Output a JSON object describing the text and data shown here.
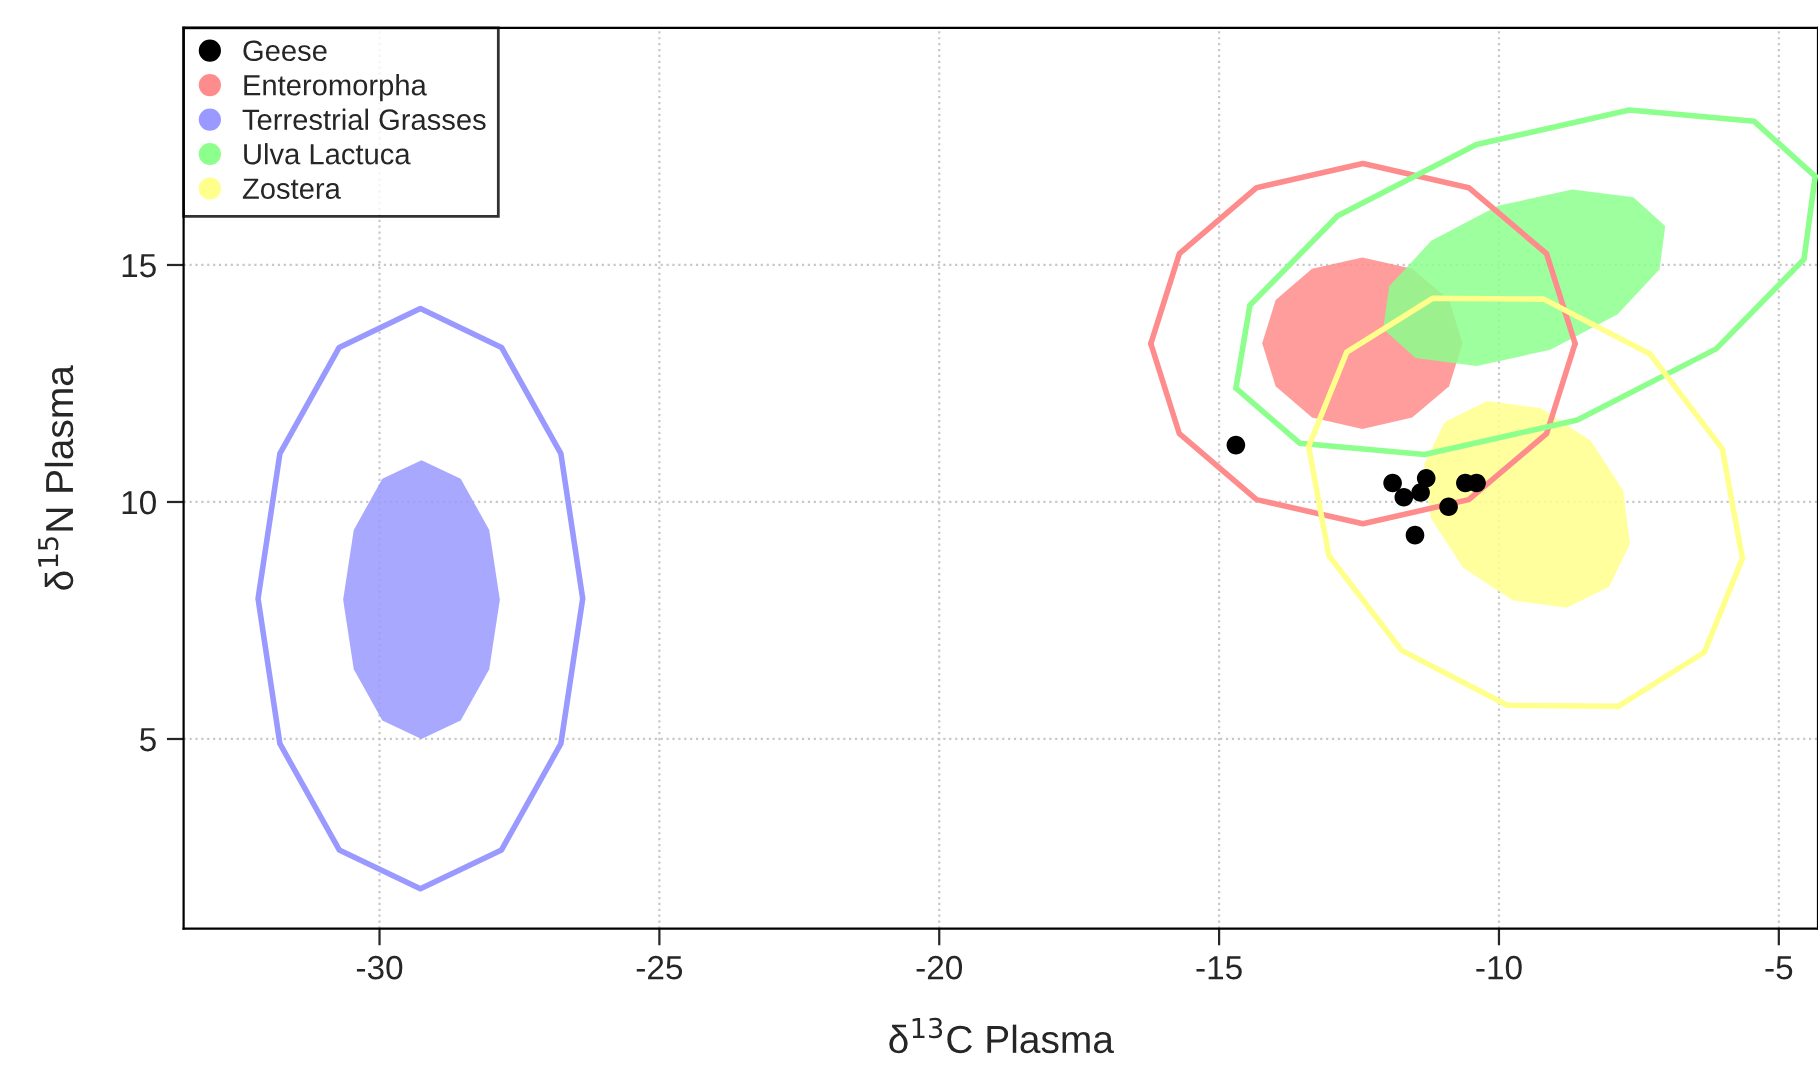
{
  "chart_data": {
    "type": "scatter",
    "xlabel": "δ$^{13}$C Plasma",
    "ylabel": "δ$^{15}$N Plasma",
    "xlim": [
      -33.5,
      -4.3
    ],
    "ylim": [
      1,
      20
    ],
    "xticks": [
      -30,
      -25,
      -20,
      -15,
      -10,
      -5
    ],
    "yticks": [
      5,
      10,
      15
    ],
    "grid": true,
    "legend": "top left",
    "series": [
      {
        "name": "Geese",
        "marker": "circle",
        "color": "#000000",
        "x": [
          -14.7,
          -11.9,
          -11.7,
          -11.4,
          -11.3,
          -10.9,
          -10.6,
          -10.4,
          -11.5
        ],
        "values": [
          11.2,
          10.4,
          10.1,
          10.2,
          10.5,
          9.9,
          10.4,
          10.4,
          9.3
        ]
      },
      {
        "name": "Enteromorpha",
        "type": "area",
        "color": "#ff8c8c",
        "x": [
          -10.65,
          -10.89,
          -11.55,
          -12.44,
          -13.34,
          -13.99,
          -14.23,
          -13.99,
          -13.34,
          -12.44,
          -11.55,
          -10.89
        ],
        "values": [
          13.35,
          14.26,
          14.92,
          15.16,
          14.92,
          14.26,
          13.35,
          12.44,
          11.78,
          11.54,
          11.78,
          12.44
        ]
      },
      {
        "type": "line",
        "color": "#ff8c8c",
        "x": [
          -16.22,
          -15.71,
          -14.33,
          -12.43,
          -10.54,
          -9.15,
          -8.64
        ],
        "values": [
          13.34,
          15.24,
          16.63,
          17.14,
          16.63,
          15.24,
          13.34
        ]
      },
      {
        "type": "line",
        "color": "#ff8c8c",
        "x": [
          -16.22,
          -15.71,
          -14.33,
          -12.43,
          -10.54,
          -9.15,
          -8.64
        ],
        "values": [
          13.34,
          11.44,
          10.05,
          9.54,
          10.05,
          11.44,
          13.34
        ]
      },
      {
        "name": "Terrestrial Grasses",
        "type": "area",
        "color": "#9999ff",
        "x": [
          -27.85,
          -28.04,
          -28.55,
          -29.25,
          -29.95,
          -30.46,
          -30.65,
          -30.46,
          -29.95,
          -29.25,
          -28.55,
          -28.04
        ],
        "values": [
          7.94,
          9.41,
          10.49,
          10.88,
          10.49,
          9.41,
          7.94,
          6.47,
          5.39,
          5.0,
          5.39,
          6.47
        ]
      },
      {
        "type": "line",
        "color": "#9999ff",
        "x": [
          -32.17,
          -31.78,
          -30.72,
          -29.27,
          -27.82,
          -26.76,
          -26.37,
          null,
          -26.37,
          -26.76,
          -27.82,
          -29.27,
          -30.72,
          -31.78,
          -32.17
        ],
        "values": [
          7.96,
          11.02,
          13.26,
          14.08,
          13.26,
          11.02,
          7.96,
          null,
          7.96,
          4.9,
          2.66,
          1.84,
          2.66,
          4.9,
          7.96
        ]
      },
      {
        "name": "Ulva Lactuca",
        "type": "area",
        "color": "#8cff8c",
        "x": [
          -7.03,
          -7.13,
          -7.88,
          -9.08,
          -10.4,
          -11.49,
          -12.07,
          -11.96,
          -11.21,
          -10.02,
          -8.69,
          -7.6
        ],
        "values": [
          15.82,
          14.91,
          13.96,
          13.21,
          12.87,
          13.04,
          13.65,
          14.55,
          15.51,
          16.25,
          16.59,
          16.43
        ]
      },
      {
        "type": "line",
        "color": "#8cff8c",
        "x": [
          -14.7,
          -13.56,
          -11.33,
          -8.6,
          -6.12,
          -4.55,
          -4.35
        ],
        "values": [
          12.4,
          11.24,
          11.0,
          11.73,
          13.23,
          15.12,
          16.87
        ]
      },
      {
        "type": "line",
        "color": "#8cff8c",
        "x": [
          -14.7,
          -14.45,
          -12.88,
          -10.4,
          -7.67,
          -5.44,
          -4.35
        ],
        "values": [
          12.4,
          14.15,
          16.04,
          17.54,
          18.27,
          18.03,
          16.87
        ]
      },
      {
        "name": "Zostera",
        "type": "area",
        "color": "#ffff8c",
        "x": [
          -8.03,
          -8.79,
          -9.75,
          -10.64,
          -11.22,
          -11.34,
          -10.97,
          -10.21,
          -9.25,
          -8.36,
          -7.78,
          -7.66
        ],
        "values": [
          8.21,
          7.77,
          7.92,
          8.61,
          9.66,
          10.79,
          11.69,
          12.13,
          11.98,
          11.29,
          10.24,
          9.12
        ]
      },
      {
        "type": "line",
        "color": "#ffff8c",
        "x": [
          -13.4,
          -12.72,
          -11.18,
          -9.2,
          -7.3,
          -6.01,
          -5.65
        ],
        "values": [
          11.17,
          13.16,
          14.3,
          14.28,
          13.12,
          11.12,
          8.81
        ]
      },
      {
        "type": "line",
        "color": "#ffff8c",
        "x": [
          -13.4,
          -13.04,
          -11.74,
          -9.85,
          -7.87,
          -6.33,
          -5.65
        ],
        "values": [
          11.17,
          8.87,
          6.87,
          5.71,
          5.69,
          6.83,
          8.81
        ]
      }
    ]
  }
}
